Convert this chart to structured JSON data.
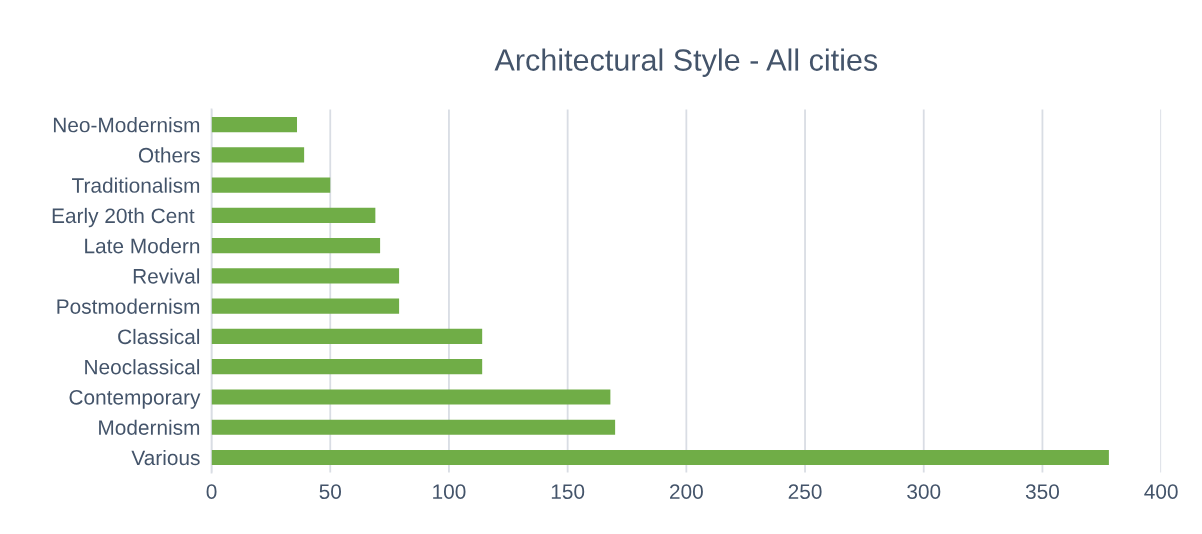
{
  "chart_data": {
    "type": "bar",
    "orientation": "horizontal",
    "title": "Architectural Style - All cities",
    "categories": [
      "Neo-Modernism",
      "Others",
      "Traditionalism",
      "Early 20th Cent ",
      "Late Modern",
      "Revival",
      "Postmodernism",
      "Classical",
      "Neoclassical",
      "Contemporary",
      "Modernism",
      "Various"
    ],
    "values": [
      36,
      39,
      50,
      69,
      71,
      79,
      79,
      114,
      114,
      168,
      170,
      378
    ],
    "color": "#70ad47",
    "xlim": [
      0,
      400
    ],
    "xticks": [
      0,
      50,
      100,
      150,
      200,
      250,
      300,
      350,
      400
    ],
    "grid": "x"
  }
}
